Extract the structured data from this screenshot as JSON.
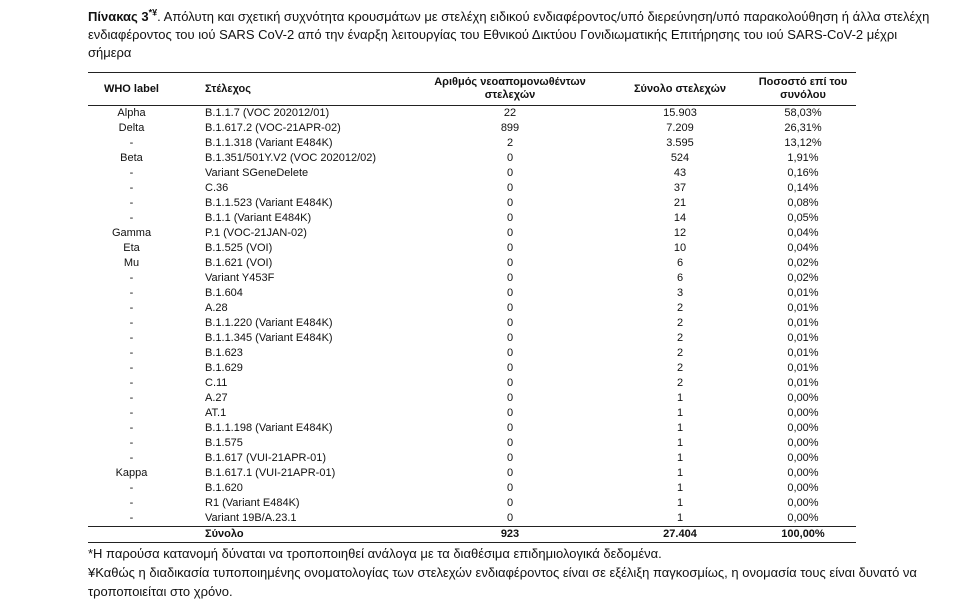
{
  "header": {
    "label": "Πίνακας 3",
    "marks": "*¥",
    "text": ". Απόλυτη και σχετική συχνότητα κρουσμάτων με στελέχη ειδικού ενδιαφέροντος/υπό διερεύνηση/υπό παρακολούθηση ή άλλα στελέχη ενδιαφέροντος του ιού SARS CoV-2 από την έναρξη λειτουργίας του Εθνικού Δικτύου Γονιδιωματικής Επιτήρησης του ιού SARS-CoV-2 μέχρι σήμερα"
  },
  "table": {
    "columns": [
      "WHO label",
      "Στέλεχος",
      "Αριθμός νεοαπομονωθέντων στελεχών",
      "Σύνολο στελεχών",
      "Ποσοστό επί του συνόλου"
    ],
    "rows": [
      [
        "Alpha",
        "B.1.1.7 (VOC 202012/01)",
        "22",
        "15.903",
        "58,03%"
      ],
      [
        "Delta",
        "B.1.617.2 (VOC-21APR-02)",
        "899",
        "7.209",
        "26,31%"
      ],
      [
        "-",
        "B.1.1.318 (Variant E484K)",
        "2",
        "3.595",
        "13,12%"
      ],
      [
        "Beta",
        "B.1.351/501Y.V2 (VOC 202012/02)",
        "0",
        "524",
        "1,91%"
      ],
      [
        "-",
        "Variant SGeneDelete",
        "0",
        "43",
        "0,16%"
      ],
      [
        "-",
        "C.36",
        "0",
        "37",
        "0,14%"
      ],
      [
        "-",
        "B.1.1.523 (Variant E484K)",
        "0",
        "21",
        "0,08%"
      ],
      [
        "-",
        "B.1.1 (Variant E484K)",
        "0",
        "14",
        "0,05%"
      ],
      [
        "Gamma",
        "P.1 (VOC-21JAN-02)",
        "0",
        "12",
        "0,04%"
      ],
      [
        "Eta",
        "B.1.525 (VOI)",
        "0",
        "10",
        "0,04%"
      ],
      [
        "Mu",
        "B.1.621 (VOI)",
        "0",
        "6",
        "0,02%"
      ],
      [
        "-",
        "Variant Y453F",
        "0",
        "6",
        "0,02%"
      ],
      [
        "-",
        "B.1.604",
        "0",
        "3",
        "0,01%"
      ],
      [
        "-",
        "A.28",
        "0",
        "2",
        "0,01%"
      ],
      [
        "-",
        "B.1.1.220 (Variant E484K)",
        "0",
        "2",
        "0,01%"
      ],
      [
        "-",
        "B.1.1.345 (Variant E484K)",
        "0",
        "2",
        "0,01%"
      ],
      [
        "-",
        "B.1.623",
        "0",
        "2",
        "0,01%"
      ],
      [
        "-",
        "B.1.629",
        "0",
        "2",
        "0,01%"
      ],
      [
        "-",
        "C.11",
        "0",
        "2",
        "0,01%"
      ],
      [
        "-",
        "A.27",
        "0",
        "1",
        "0,00%"
      ],
      [
        "-",
        "AT.1",
        "0",
        "1",
        "0,00%"
      ],
      [
        "-",
        "B.1.1.198 (Variant E484K)",
        "0",
        "1",
        "0,00%"
      ],
      [
        "-",
        "B.1.575",
        "0",
        "1",
        "0,00%"
      ],
      [
        "-",
        "B.1.617 (VUI-21APR-01)",
        "0",
        "1",
        "0,00%"
      ],
      [
        "Kappa",
        "B.1.617.1 (VUI-21APR-01)",
        "0",
        "1",
        "0,00%"
      ],
      [
        "-",
        "B.1.620",
        "0",
        "1",
        "0,00%"
      ],
      [
        "-",
        "R1 (Variant E484K)",
        "0",
        "1",
        "0,00%"
      ],
      [
        "-",
        "Variant 19B/A.23.1",
        "0",
        "1",
        "0,00%"
      ]
    ],
    "total": {
      "label": "Σύνολο",
      "new": "923",
      "total": "27.404",
      "percent": "100,00%"
    }
  },
  "footnotes": [
    "*Η παρούσα κατανομή δύναται να τροποποιηθεί ανάλογα με τα διαθέσιμα επιδημιολογικά δεδομένα.",
    "¥Καθώς η διαδικασία τυποποιημένης ονοματολογίας των στελεχών ενδιαφέροντος είναι σε εξέλιξη παγκοσμίως, η ονομασία τους είναι δυνατό να τροποποιείται στο χρόνο."
  ]
}
